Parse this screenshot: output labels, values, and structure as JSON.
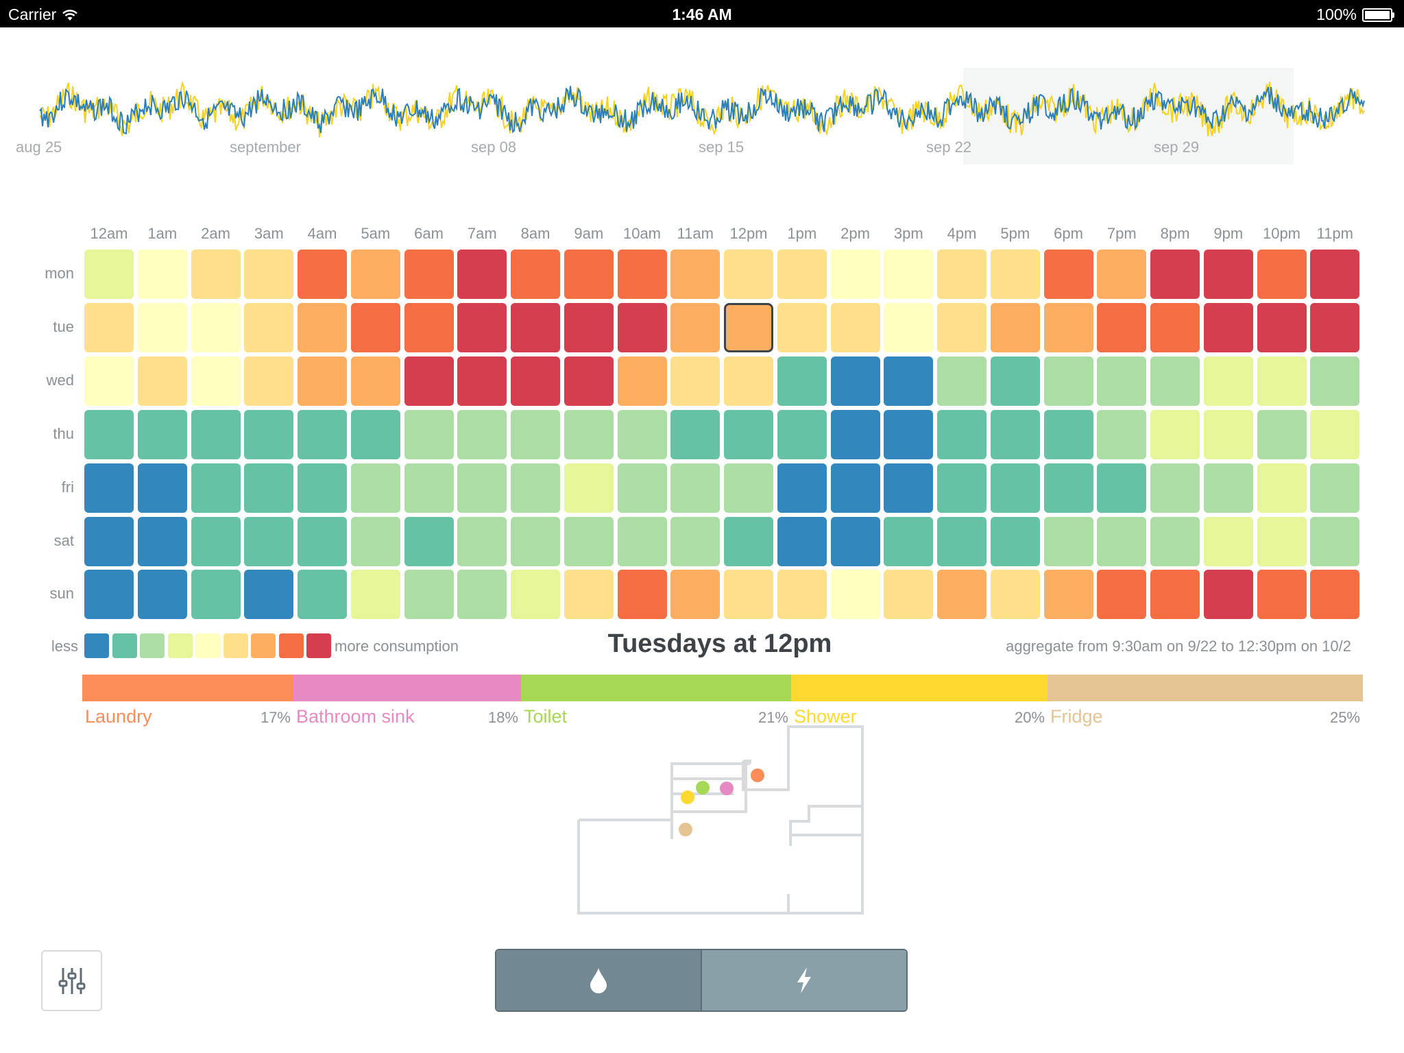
{
  "status_bar": {
    "carrier": "Carrier",
    "time": "1:46 AM",
    "battery": "100%"
  },
  "timeline": {
    "labels": [
      "aug 25",
      "september",
      "sep 08",
      "sep 15",
      "sep 22",
      "sep 29"
    ],
    "series_colors": {
      "primary": "#2a7fb8",
      "secondary": "#f6d21e"
    },
    "selection_color": "#f4f5f5"
  },
  "heatmap": {
    "hours": [
      "12am",
      "1am",
      "2am",
      "3am",
      "4am",
      "5am",
      "6am",
      "7am",
      "8am",
      "9am",
      "10am",
      "11am",
      "12pm",
      "1pm",
      "2pm",
      "3pm",
      "4pm",
      "5pm",
      "6pm",
      "7pm",
      "8pm",
      "9pm",
      "10pm",
      "11pm"
    ],
    "days": [
      "mon",
      "tue",
      "wed",
      "thu",
      "fri",
      "sat",
      "sun"
    ],
    "levels": [
      [
        4,
        5,
        6,
        6,
        8,
        7,
        8,
        9,
        8,
        8,
        8,
        7,
        6,
        6,
        5,
        5,
        6,
        6,
        8,
        7,
        9,
        9,
        8,
        9
      ],
      [
        6,
        5,
        5,
        6,
        7,
        8,
        8,
        9,
        9,
        9,
        9,
        7,
        7,
        6,
        6,
        5,
        6,
        7,
        7,
        8,
        8,
        9,
        9,
        9
      ],
      [
        5,
        6,
        5,
        6,
        7,
        7,
        9,
        9,
        9,
        9,
        7,
        6,
        6,
        2,
        1,
        1,
        3,
        2,
        3,
        3,
        3,
        4,
        4,
        3
      ],
      [
        2,
        2,
        2,
        2,
        2,
        2,
        3,
        3,
        3,
        3,
        3,
        2,
        2,
        2,
        1,
        1,
        2,
        2,
        2,
        3,
        4,
        4,
        3,
        4
      ],
      [
        1,
        1,
        2,
        2,
        2,
        3,
        3,
        3,
        3,
        4,
        3,
        3,
        3,
        1,
        1,
        1,
        2,
        2,
        2,
        2,
        3,
        3,
        4,
        3
      ],
      [
        1,
        1,
        2,
        2,
        2,
        3,
        2,
        3,
        3,
        3,
        3,
        3,
        2,
        1,
        1,
        2,
        2,
        2,
        3,
        3,
        3,
        4,
        4,
        3
      ],
      [
        1,
        1,
        2,
        1,
        2,
        4,
        3,
        3,
        4,
        6,
        8,
        7,
        6,
        6,
        5,
        6,
        7,
        6,
        7,
        8,
        8,
        9,
        8,
        8
      ]
    ],
    "colors": [
      "#3288bd",
      "#66c2a5",
      "#abdda4",
      "#e6f598",
      "#ffffbf",
      "#fee08b",
      "#fdae61",
      "#f46d43",
      "#d53e4f"
    ],
    "selected": {
      "day": "tue",
      "hour": "12pm"
    }
  },
  "legend": {
    "less": "less",
    "more": "more consumption"
  },
  "selection_title": "Tuesdays at 12pm",
  "aggregate": "aggregate from 9:30am on 9/22 to 12:30pm on 10/2",
  "breakdown": [
    {
      "name": "Laundry",
      "percent": "17%",
      "share": 17,
      "color": "#fc8d59"
    },
    {
      "name": "Bathroom sink",
      "percent": "18%",
      "share": 18,
      "color": "#e78ac3"
    },
    {
      "name": "Toilet",
      "percent": "21%",
      "share": 21,
      "color": "#a6d854"
    },
    {
      "name": "Shower",
      "percent": "20%",
      "share": 20,
      "color": "#ffd92f"
    },
    {
      "name": "Fridge",
      "percent": "25%",
      "share": 25,
      "color": "#e5c494"
    }
  ],
  "icons": {
    "settings": "sliders-icon",
    "water": "water-drop-icon",
    "electric": "lightning-icon"
  }
}
